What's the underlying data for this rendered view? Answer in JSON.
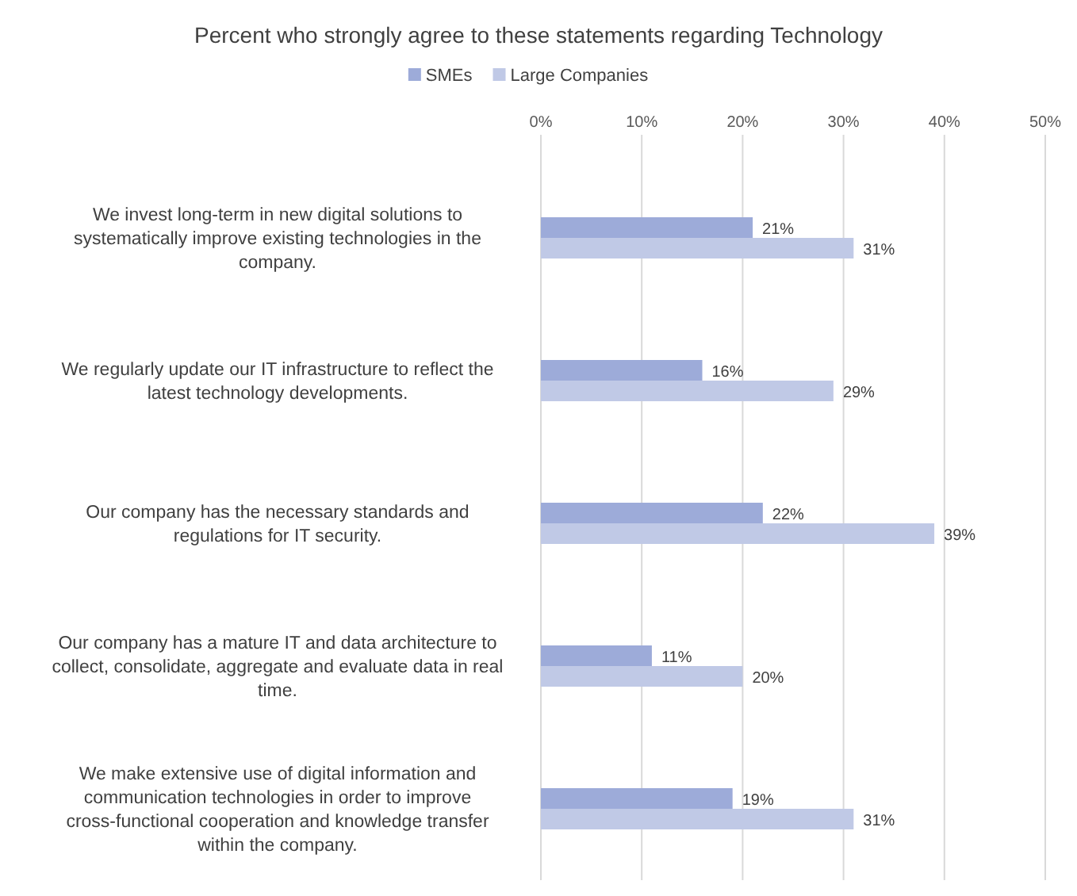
{
  "chart_data": {
    "type": "bar",
    "orientation": "horizontal",
    "title": "Percent who strongly agree to these statements regarding Technology",
    "categories": [
      "We invest long-term in new digital solutions to systematically improve existing technologies in the company.",
      "We regularly update our IT infrastructure to reflect the latest technology developments.",
      "Our company has the necessary standards and regulations for IT security.",
      "Our company has a mature IT and data architecture to collect, consolidate, aggregate and evaluate data in real time.",
      "We make extensive use of digital information and communication technologies in order to improve cross-functional cooperation and knowledge transfer within the company."
    ],
    "series": [
      {
        "name": "SMEs",
        "color": "#9dabd9",
        "values": [
          21,
          16,
          22,
          11,
          19
        ],
        "value_labels": [
          "21%",
          "16%",
          "22%",
          "11%",
          "19%"
        ]
      },
      {
        "name": "Large Companies",
        "color": "#c0c9e6",
        "values": [
          31,
          29,
          39,
          20,
          31
        ],
        "value_labels": [
          "31%",
          "29%",
          "39%",
          "20%",
          "31%"
        ]
      }
    ],
    "xlim": [
      0,
      50
    ],
    "xticks": [
      {
        "value": 0,
        "label": "0%"
      },
      {
        "value": 10,
        "label": "10%"
      },
      {
        "value": 20,
        "label": "20%"
      },
      {
        "value": 30,
        "label": "30%"
      },
      {
        "value": 40,
        "label": "40%"
      },
      {
        "value": 50,
        "label": "50%"
      }
    ],
    "grid": "x",
    "legend": "top"
  }
}
